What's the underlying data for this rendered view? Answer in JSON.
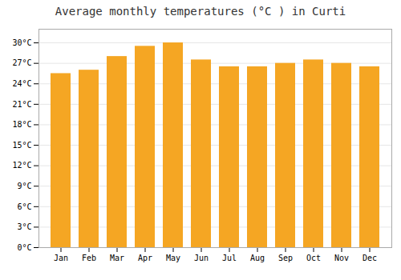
{
  "chart_data": {
    "type": "bar",
    "title": "Average monthly temperatures (°C ) in Curti",
    "categories": [
      "Jan",
      "Feb",
      "Mar",
      "Apr",
      "May",
      "Jun",
      "Jul",
      "Aug",
      "Sep",
      "Oct",
      "Nov",
      "Dec"
    ],
    "values": [
      25.5,
      26.0,
      28.0,
      29.5,
      30.0,
      27.5,
      26.5,
      26.5,
      27.0,
      27.5,
      27.0,
      26.5
    ],
    "color": "#F5A623",
    "ylim": [
      0,
      32
    ],
    "yticks": [
      {
        "value": 0,
        "label": "0°C"
      },
      {
        "value": 3,
        "label": "3°C"
      },
      {
        "value": 6,
        "label": "6°C"
      },
      {
        "value": 9,
        "label": "9°C"
      },
      {
        "value": 12,
        "label": "12°C"
      },
      {
        "value": 15,
        "label": "15°C"
      },
      {
        "value": 18,
        "label": "18°C"
      },
      {
        "value": 21,
        "label": "21°C"
      },
      {
        "value": 24,
        "label": "24°C"
      },
      {
        "value": 27,
        "label": "27°C"
      },
      {
        "value": 30,
        "label": "30°C"
      }
    ],
    "grid": true
  }
}
